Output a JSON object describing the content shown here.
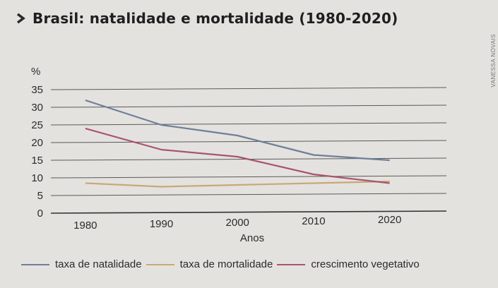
{
  "header": {
    "title": "Brasil: natalidade e mortalidade (1980-2020)",
    "credit": "VANESSA NOVAIS"
  },
  "chart_data": {
    "type": "line",
    "title": "Brasil: natalidade e mortalidade (1980-2020)",
    "ylabel": "%",
    "xlabel": "Anos",
    "x": [
      1980,
      1990,
      2000,
      2010,
      2020
    ],
    "xticks": [
      "1980",
      "1990",
      "2000",
      "2010",
      "2020"
    ],
    "yticks": [
      "0",
      "5",
      "10",
      "15",
      "20",
      "25",
      "30",
      "35"
    ],
    "ylim": [
      0,
      35
    ],
    "grid": true,
    "legend_position": "bottom",
    "series": [
      {
        "name": "taxa de natalidade",
        "color": "#6f7f99",
        "values": [
          32,
          25,
          22,
          16.5,
          15
        ]
      },
      {
        "name": "taxa de mortalidade",
        "color": "#c9a878",
        "values": [
          8.5,
          7.5,
          8,
          8.5,
          9
        ]
      },
      {
        "name": "crescimento vegetativo",
        "color": "#a85470",
        "values": [
          24,
          18,
          16,
          11,
          8.5
        ]
      }
    ]
  }
}
